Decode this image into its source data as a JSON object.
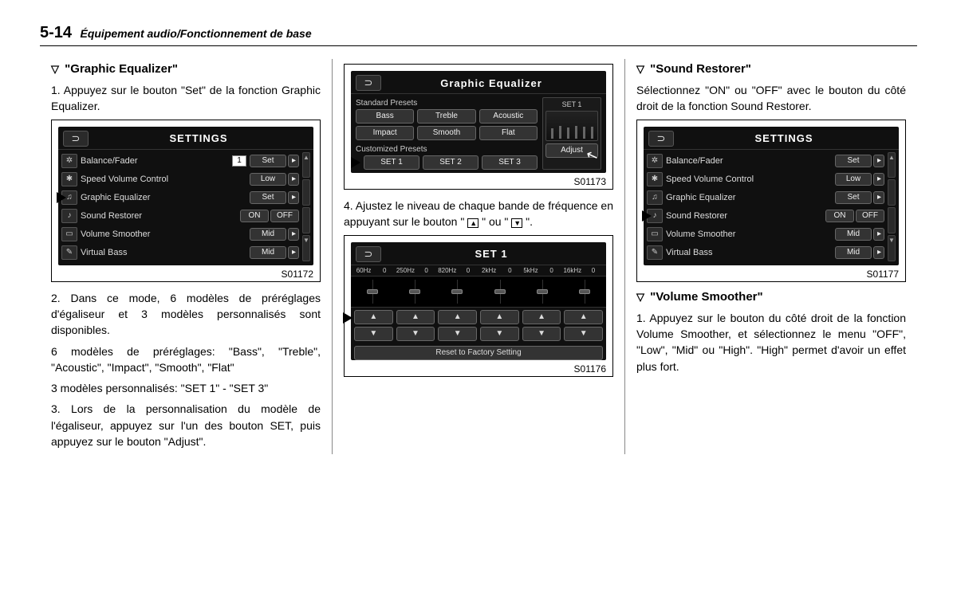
{
  "header": {
    "page_num": "5-14",
    "title": "Équipement audio/Fonctionnement de base"
  },
  "col1": {
    "heading": "\"Graphic Equalizer\"",
    "p1": "1. Appuyez sur le bouton \"Set\" de la fonction Graphic Equalizer.",
    "p2": "2. Dans ce mode, 6 modèles de préréglages d'égaliseur et 3 modèles personnalisés sont disponibles.",
    "p3": "6 modèles de préréglages: \"Bass\", \"Treble\", \"Acoustic\", \"Impact\", \"Smooth\", \"Flat\"",
    "p4": "3 modèles personnalisés: \"SET 1\" - \"SET 3\"",
    "p5": "3. Lors de la personnalisation du modèle de l'égaliseur, appuyez sur l'un des bouton SET, puis appuyez sur le bouton \"Adjust\".",
    "fig1": {
      "title": "SETTINGS",
      "rows": [
        {
          "icon": "✲",
          "label": "Balance/Fader",
          "value": "1",
          "btn": "Set",
          "arrow": "▸"
        },
        {
          "icon": "✱",
          "label": "Speed Volume Control",
          "btn": "Low",
          "arrow": "▸"
        },
        {
          "icon": "♫",
          "label": "Graphic Equalizer",
          "btn": "Set",
          "arrow": "▸",
          "pointer": true
        },
        {
          "icon": "♪",
          "label": "Sound Restorer",
          "btn1": "ON",
          "btn2": "OFF"
        },
        {
          "icon": "▭",
          "label": "Volume Smoother",
          "btn": "Mid",
          "arrow": "▸"
        },
        {
          "icon": "✎",
          "label": "Virtual Bass",
          "btn": "Mid",
          "arrow": "▸"
        }
      ],
      "code": "S01172"
    }
  },
  "col2": {
    "fig2": {
      "title": "Graphic Equalizer",
      "std_label": "Standard Presets",
      "std": [
        "Bass",
        "Treble",
        "Acoustic",
        "Impact",
        "Smooth",
        "Flat"
      ],
      "cust_label": "Customized Presets",
      "cust": [
        "SET 1",
        "SET 2",
        "SET 3"
      ],
      "side_label": "SET 1",
      "adjust": "Adjust",
      "code": "S01173"
    },
    "p1a": "4. Ajustez le niveau de chaque bande de fréquence en appuyant sur le bouton \" ",
    "p1b": " \" ou \" ",
    "p1c": " \".",
    "fig3": {
      "title": "SET 1",
      "freqs": [
        "60Hz",
        "0",
        "250Hz",
        "0",
        "820Hz",
        "0",
        "2kHz",
        "0",
        "5kHz",
        "0",
        "16kHz",
        "0"
      ],
      "reset": "Reset to Factory Setting",
      "code": "S01176"
    }
  },
  "col3": {
    "heading1": "\"Sound Restorer\"",
    "p1": "Sélectionnez \"ON\" ou \"OFF\" avec le bouton du côté droit de la fonction Sound Restorer.",
    "fig4": {
      "title": "SETTINGS",
      "rows": [
        {
          "icon": "✲",
          "label": "Balance/Fader",
          "btn": "Set",
          "arrow": "▸"
        },
        {
          "icon": "✱",
          "label": "Speed Volume Control",
          "btn": "Low",
          "arrow": "▸"
        },
        {
          "icon": "♫",
          "label": "Graphic Equalizer",
          "btn": "Set",
          "arrow": "▸"
        },
        {
          "icon": "♪",
          "label": "Sound Restorer",
          "btn1": "ON",
          "btn2": "OFF",
          "pointer": true
        },
        {
          "icon": "▭",
          "label": "Volume Smoother",
          "btn": "Mid",
          "arrow": "▸"
        },
        {
          "icon": "✎",
          "label": "Virtual Bass",
          "btn": "Mid",
          "arrow": "▸"
        }
      ],
      "code": "S01177"
    },
    "heading2": "\"Volume Smoother\"",
    "p2": "1. Appuyez sur le bouton du côté droit de la fonction Volume Smoother, et sélectionnez le menu \"OFF\", \"Low\", \"Mid\" ou \"High\". \"High\" permet d'avoir un effet plus fort."
  }
}
